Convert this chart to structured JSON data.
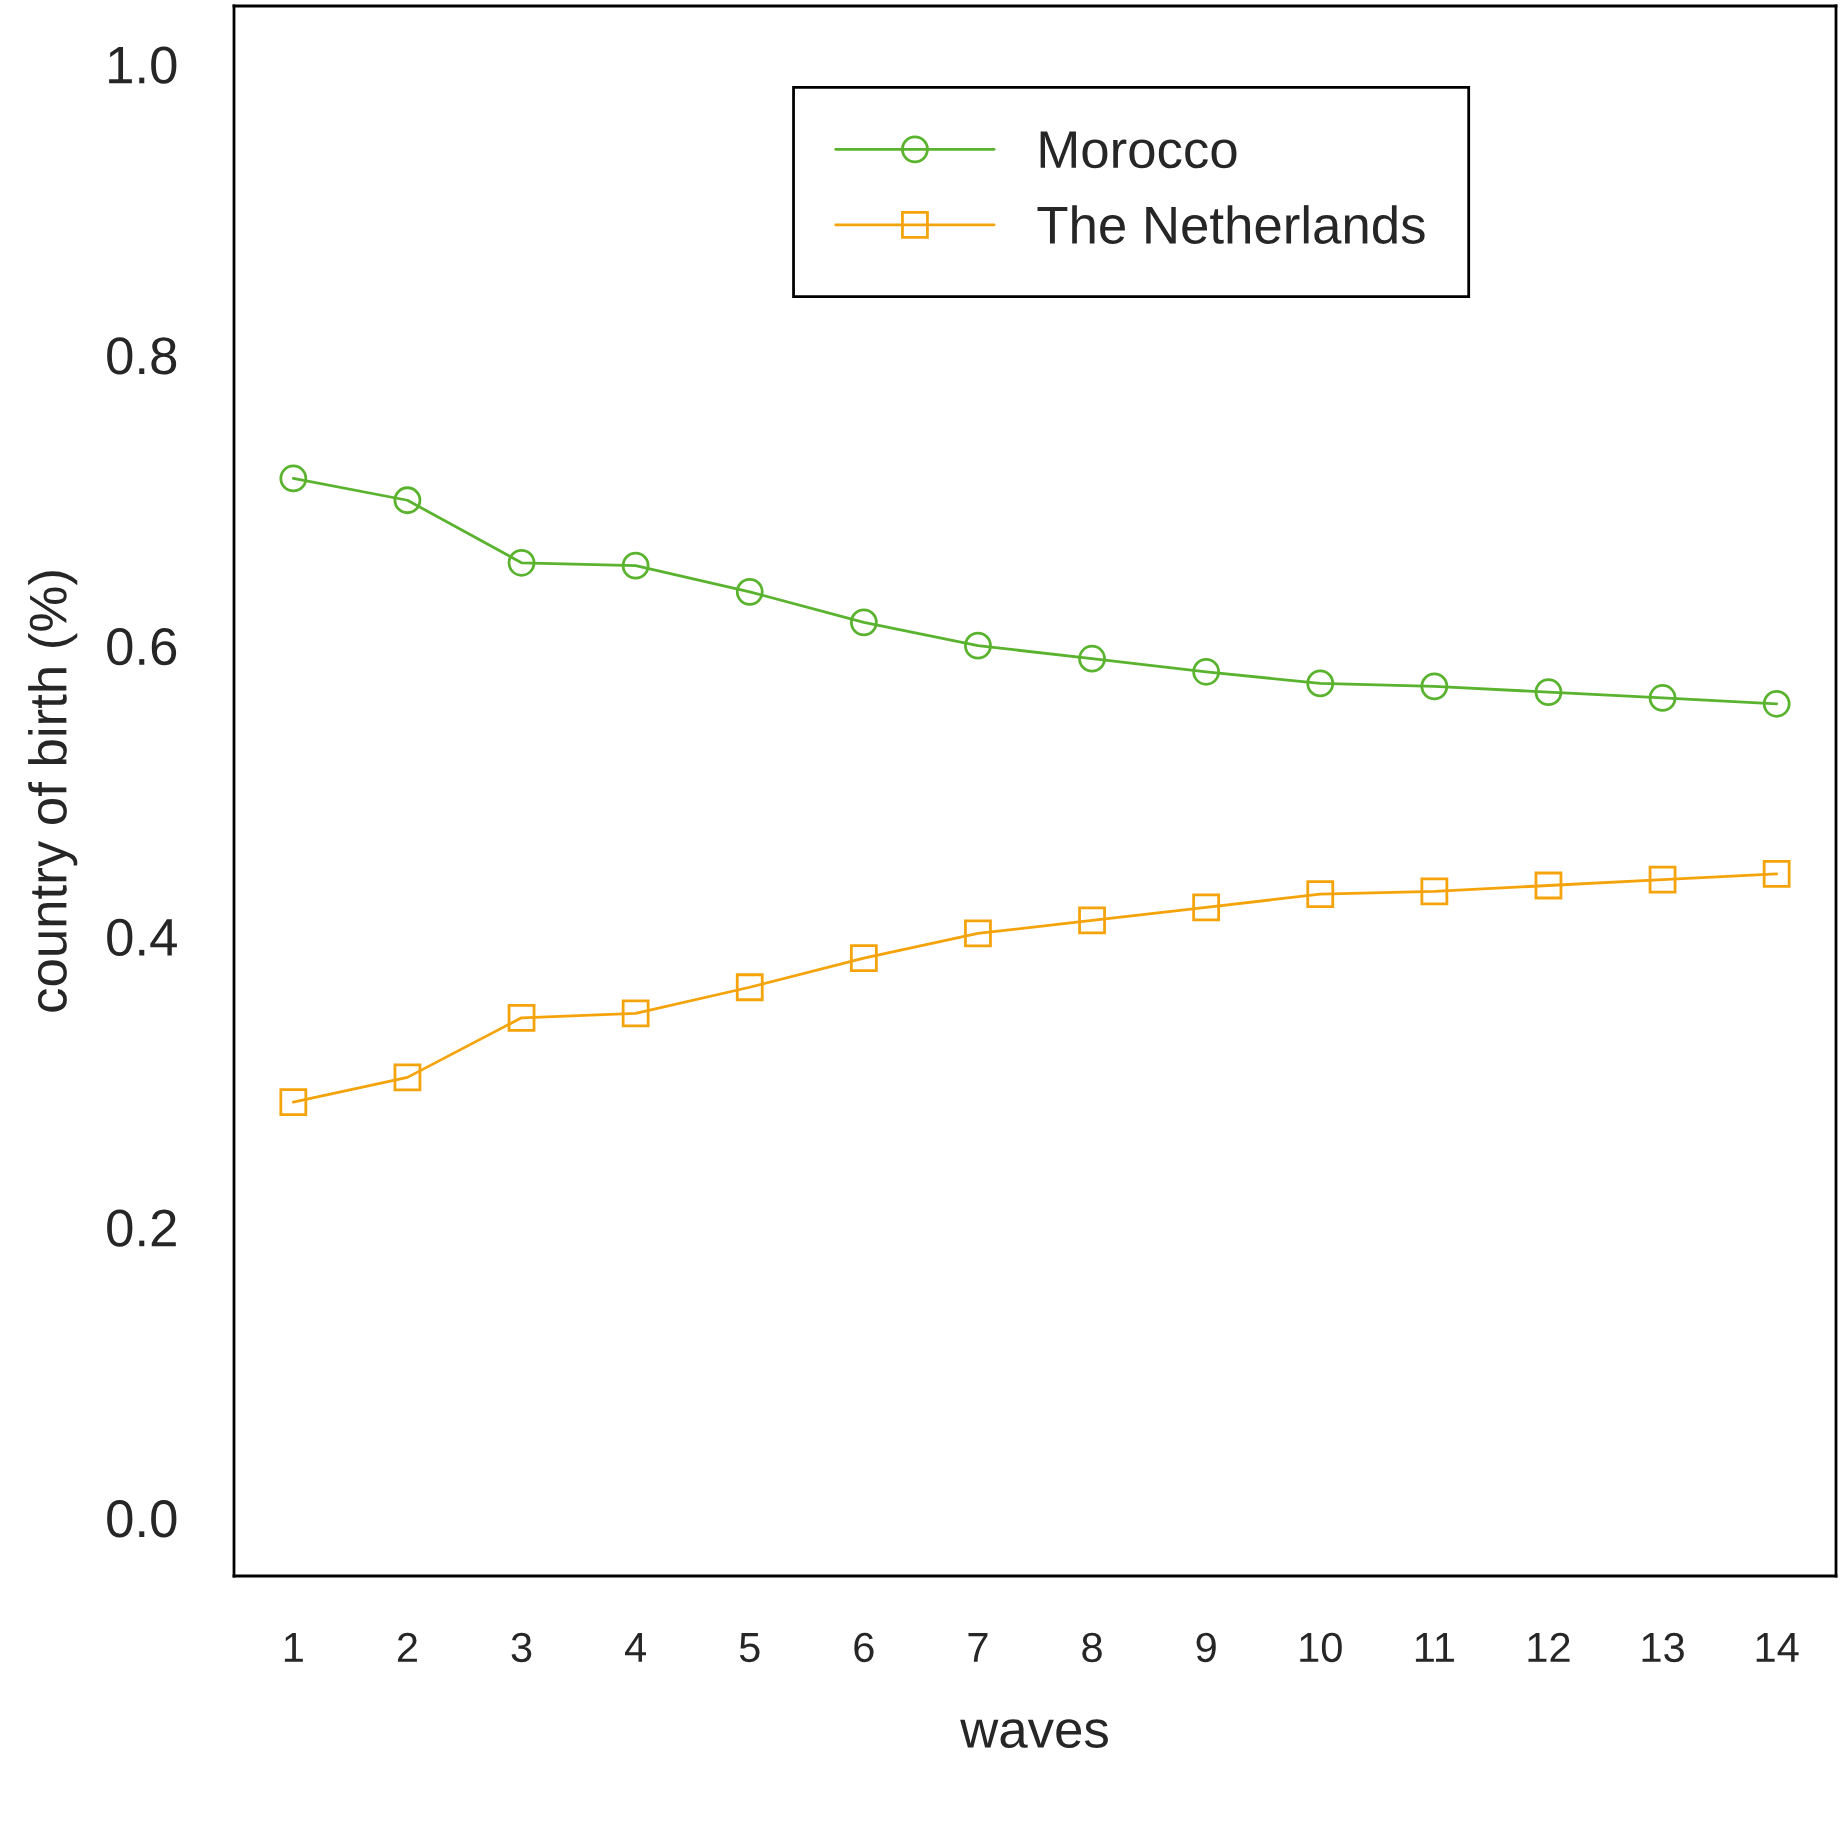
{
  "chart_data": {
    "type": "line",
    "xlabel": "waves",
    "ylabel": "country of birth (%)",
    "x": [
      1,
      2,
      3,
      4,
      5,
      6,
      7,
      8,
      9,
      10,
      11,
      12,
      13,
      14
    ],
    "series": [
      {
        "name": "Morocco",
        "color": "#5ab32e",
        "marker": "circle",
        "values": [
          0.715,
          0.7,
          0.657,
          0.655,
          0.637,
          0.616,
          0.6,
          0.591,
          0.582,
          0.574,
          0.572,
          0.568,
          0.564,
          0.56
        ]
      },
      {
        "name": "The Netherlands",
        "color": "#f5a30a",
        "marker": "square",
        "values": [
          0.286,
          0.303,
          0.344,
          0.347,
          0.365,
          0.385,
          0.402,
          0.411,
          0.42,
          0.429,
          0.431,
          0.435,
          0.439,
          0.443
        ]
      }
    ],
    "xlim": [
      0.48,
      14.52
    ],
    "ylim": [
      -0.04,
      1.04
    ],
    "xticks": [
      1,
      2,
      3,
      4,
      5,
      6,
      7,
      8,
      9,
      10,
      11,
      12,
      13,
      14
    ],
    "yticks": [
      {
        "value": 0,
        "label": "0.0"
      },
      {
        "value": 0.2,
        "label": "0.2"
      },
      {
        "value": 0.4,
        "label": "0.4"
      },
      {
        "value": 0.6,
        "label": "0.6"
      },
      {
        "value": 0.8,
        "label": "0.8"
      },
      {
        "value": 1,
        "label": "1.0"
      }
    ],
    "grid": false,
    "legend": "top",
    "line_style": "solid"
  }
}
